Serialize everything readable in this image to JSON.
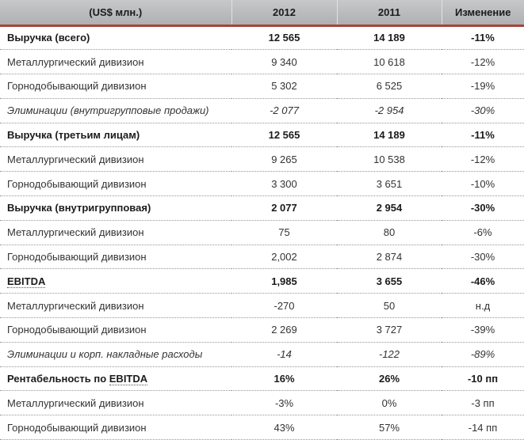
{
  "colors": {
    "accent_red": "#a94238",
    "header_bg_top": "#c6c8ca",
    "header_bg_bottom": "#aeb0b2",
    "text": "#333333",
    "row_divider": "#979797"
  },
  "table": {
    "headers": [
      "(US$ млн.)",
      "2012",
      "2011",
      "Изменение"
    ],
    "rows": [
      {
        "label": "Выручка (всего)",
        "v2012": "12 565",
        "v2011": "14 189",
        "change": "-11%",
        "style": "bold"
      },
      {
        "label": "Металлургический дивизион",
        "v2012": "9 340",
        "v2011": "10 618",
        "change": "-12%",
        "style": "normal"
      },
      {
        "label": "Горнодобывающий дивизион",
        "v2012": "5 302",
        "v2011": "6 525",
        "change": "-19%",
        "style": "normal"
      },
      {
        "label": "Элиминации (внутригрупповые продажи)",
        "v2012": "-2 077",
        "v2011": "-2 954",
        "change": "-30%",
        "style": "italic"
      },
      {
        "label": "Выручка (третьим лицам)",
        "v2012": "12 565",
        "v2011": "14 189",
        "change": "-11%",
        "style": "bold"
      },
      {
        "label": "Металлургический дивизион",
        "v2012": "9 265",
        "v2011": "10 538",
        "change": "-12%",
        "style": "normal"
      },
      {
        "label": "Горнодобывающий дивизион",
        "v2012": "3 300",
        "v2011": "3 651",
        "change": "-10%",
        "style": "normal"
      },
      {
        "label": "Выручка (внутригрупповая)",
        "v2012": "2 077",
        "v2011": "2 954",
        "change": "-30%",
        "style": "bold"
      },
      {
        "label": "Металлургический дивизион",
        "v2012": "75",
        "v2011": "80",
        "change": "-6%",
        "style": "normal"
      },
      {
        "label": "Горнодобывающий дивизион",
        "v2012": "2,002",
        "v2011": "2 874",
        "change": "-30%",
        "style": "normal"
      },
      {
        "label_prefix": "",
        "abbr": "EBITDA",
        "v2012": "1,985",
        "v2011": "3 655",
        "change": "-46%",
        "style": "bold"
      },
      {
        "label": "Металлургический дивизион",
        "v2012": "-270",
        "v2011": "50",
        "change": "н.д",
        "style": "normal"
      },
      {
        "label": "Горнодобывающий дивизион",
        "v2012": "2 269",
        "v2011": "3 727",
        "change": "-39%",
        "style": "normal"
      },
      {
        "label": "Элиминации и корп. накладные расходы",
        "v2012": "-14",
        "v2011": "-122",
        "change": "-89%",
        "style": "italic"
      },
      {
        "label_prefix": "Рентабельность по ",
        "abbr": "EBITDA",
        "v2012": "16%",
        "v2011": "26%",
        "change": "-10 пп",
        "style": "bold"
      },
      {
        "label": "Металлургический дивизион",
        "v2012": "-3%",
        "v2011": "0%",
        "change": "-3 пп",
        "style": "normal"
      },
      {
        "label": "Горнодобывающий дивизион",
        "v2012": "43%",
        "v2011": "57%",
        "change": "-14 пп",
        "style": "normal"
      }
    ]
  }
}
